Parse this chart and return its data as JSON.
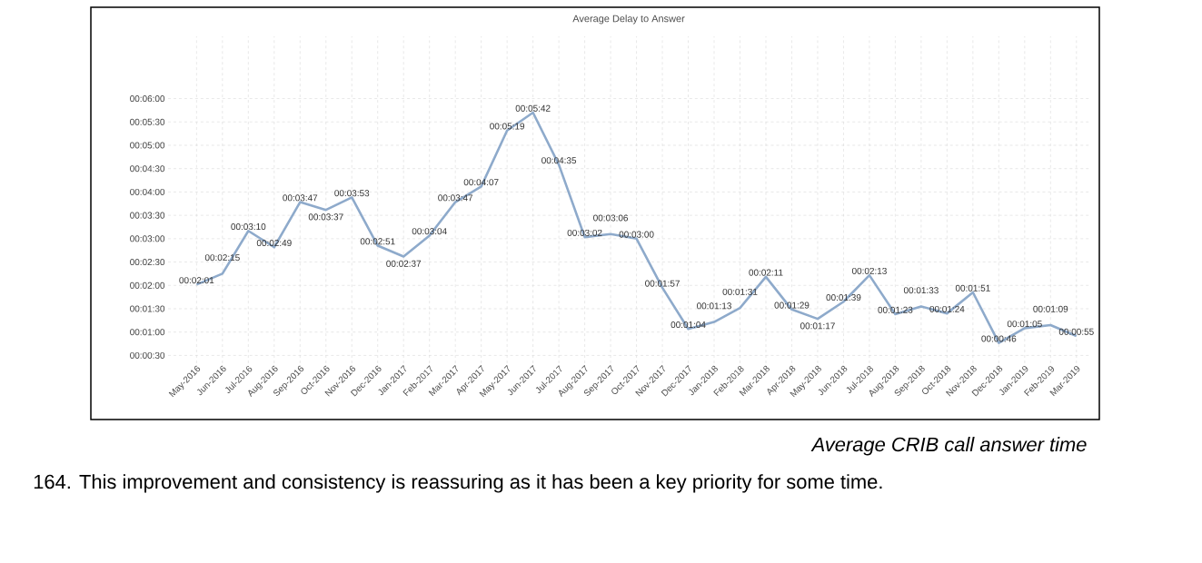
{
  "chart_data": {
    "type": "line",
    "title": "Average Delay to Answer",
    "categories": [
      "May-2016",
      "Jun-2016",
      "Jul-2016",
      "Aug-2016",
      "Sep-2016",
      "Oct-2016",
      "Nov-2016",
      "Dec-2016",
      "Jan-2017",
      "Feb-2017",
      "Mar-2017",
      "Apr-2017",
      "May-2017",
      "Jun-2017",
      "Jul-2017",
      "Aug-2017",
      "Sep-2017",
      "Oct-2017",
      "Nov-2017",
      "Dec-2017",
      "Jan-2018",
      "Feb-2018",
      "Mar-2018",
      "Apr-2018",
      "May-2018",
      "Jun-2018",
      "Jul-2018",
      "Aug-2018",
      "Sep-2018",
      "Oct-2018",
      "Nov-2018",
      "Dec-2018",
      "Jan-2019",
      "Feb-2019",
      "Mar-2019"
    ],
    "values": [
      121,
      135,
      190,
      169,
      227,
      217,
      233,
      171,
      157,
      184,
      227,
      247,
      319,
      342,
      275,
      182,
      186,
      180,
      117,
      64,
      73,
      91,
      131,
      89,
      77,
      99,
      133,
      83,
      93,
      84,
      111,
      46,
      65,
      69,
      55
    ],
    "value_labels": [
      "00:02:01",
      "00:02:15",
      "00:03:10",
      "00:02:49",
      "00:03:47",
      "00:03:37",
      "00:03:53",
      "00:02:51",
      "00:02:37",
      "00:03:04",
      "00:03:47",
      "00:04:07",
      "00:05:19",
      "00:05:42",
      "00:04:35",
      "00:03:02",
      "00:03:06",
      "00:03:00",
      "00:01:57",
      "00:01:04",
      "00:01:13",
      "00:01:31",
      "00:02:11",
      "00:01:29",
      "00:01:17",
      "00:01:39",
      "00:02:13",
      "00:01:23",
      "00:01:33",
      "00:01:24",
      "00:01:51",
      "00:00:46",
      "00:01:05",
      "00:01:09",
      "00:00:55"
    ],
    "color": "#8eaacb",
    "marker": "none",
    "grid": true,
    "ylim": [
      20,
      440
    ],
    "yticks": [
      {
        "value": 30,
        "label": "00:00:30"
      },
      {
        "value": 60,
        "label": "00:01:00"
      },
      {
        "value": 90,
        "label": "00:01:30"
      },
      {
        "value": 120,
        "label": "00:02:00"
      },
      {
        "value": 150,
        "label": "00:02:30"
      },
      {
        "value": 180,
        "label": "00:03:00"
      },
      {
        "value": 210,
        "label": "00:03:30"
      },
      {
        "value": 240,
        "label": "00:04:00"
      },
      {
        "value": 270,
        "label": "00:04:30"
      },
      {
        "value": 300,
        "label": "00:05:00"
      },
      {
        "value": 330,
        "label": "00:05:30"
      },
      {
        "value": 360,
        "label": "00:06:00"
      }
    ],
    "annotations": [
      "Average CRIB call answer time",
      "164. This improvement and consistency is reassuring as it has been a key priority for some time."
    ]
  }
}
